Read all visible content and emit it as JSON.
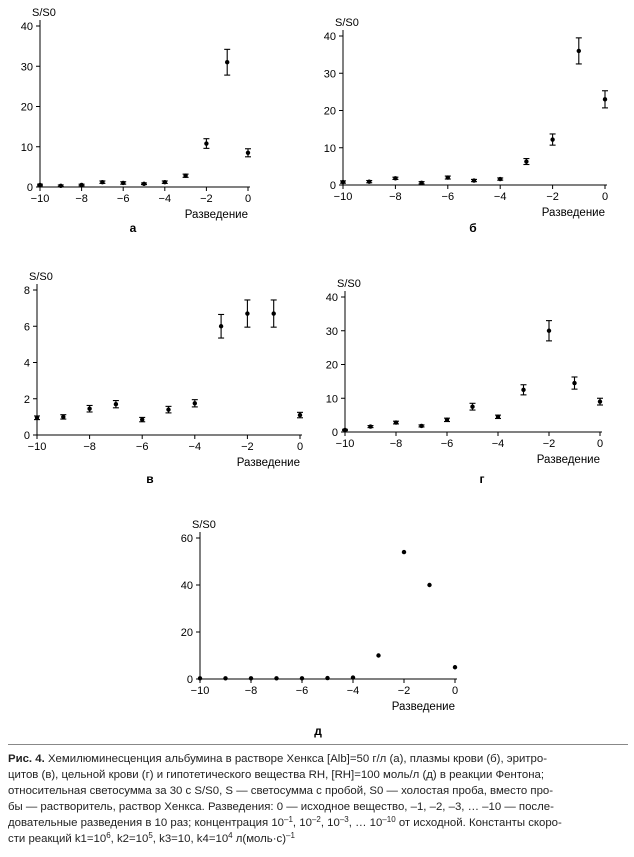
{
  "chart_data": [
    {
      "type": "scatter",
      "panel_label": "а",
      "ylabel": "S/S0",
      "xlabel": "Разведение",
      "xlim": [
        -10,
        0
      ],
      "ylim": [
        0,
        40
      ],
      "xticks": [
        -10,
        -8,
        -6,
        -4,
        -2,
        0
      ],
      "yticks": [
        0,
        10,
        20,
        30,
        40
      ],
      "x": [
        -10,
        -9,
        -8,
        -7,
        -6,
        -5,
        -4,
        -3,
        -2,
        -1,
        0
      ],
      "y": [
        0.5,
        0.3,
        0.5,
        1.2,
        1.0,
        0.8,
        1.2,
        2.8,
        10.8,
        31,
        8.5
      ],
      "err": [
        0.2,
        0.2,
        0.2,
        0.3,
        0.3,
        0.2,
        0.3,
        0.4,
        1.2,
        3.2,
        1.0
      ]
    },
    {
      "type": "scatter",
      "panel_label": "б",
      "ylabel": "S/S0",
      "xlabel": "Разведение",
      "xlim": [
        -10,
        0
      ],
      "ylim": [
        0,
        40
      ],
      "xticks": [
        -10,
        -8,
        -6,
        -4,
        -2,
        0
      ],
      "yticks": [
        0,
        10,
        20,
        30,
        40
      ],
      "x": [
        -10,
        -9,
        -8,
        -7,
        -6,
        -5,
        -4,
        -3,
        -2,
        -1,
        0
      ],
      "y": [
        0.8,
        0.9,
        1.8,
        0.6,
        2.0,
        1.2,
        1.6,
        6.3,
        12.2,
        36,
        23
      ],
      "err": [
        0.3,
        0.3,
        0.3,
        0.3,
        0.4,
        0.3,
        0.3,
        0.8,
        1.5,
        3.5,
        2.3
      ]
    },
    {
      "type": "scatter",
      "panel_label": "в",
      "ylabel": "S/S0",
      "xlabel": "Разведение",
      "xlim": [
        -10,
        0
      ],
      "ylim": [
        0,
        8
      ],
      "xticks": [
        -10,
        -8,
        -6,
        -4,
        -2,
        0
      ],
      "yticks": [
        0,
        2,
        4,
        6,
        8
      ],
      "x": [
        -10,
        -9,
        -8,
        -7,
        -6,
        -5,
        -4,
        -3,
        -2,
        -1,
        0
      ],
      "y": [
        0.95,
        1.0,
        1.45,
        1.7,
        0.85,
        1.4,
        1.75,
        6.0,
        6.7,
        6.7,
        1.1
      ],
      "err": [
        0.1,
        0.12,
        0.18,
        0.2,
        0.12,
        0.18,
        0.2,
        0.65,
        0.75,
        0.75,
        0.15
      ]
    },
    {
      "type": "scatter",
      "panel_label": "г",
      "ylabel": "S/S0",
      "xlabel": "Разведение",
      "xlim": [
        -10,
        0
      ],
      "ylim": [
        0,
        40
      ],
      "xticks": [
        -10,
        -8,
        -6,
        -4,
        -2,
        0
      ],
      "yticks": [
        0,
        10,
        20,
        30,
        40
      ],
      "x": [
        -10,
        -9,
        -8,
        -7,
        -6,
        -5,
        -4,
        -3,
        -2,
        -1,
        0
      ],
      "y": [
        0.6,
        1.6,
        2.8,
        1.8,
        3.6,
        7.5,
        4.5,
        12.5,
        30,
        14.5,
        9.0
      ],
      "err": [
        0.2,
        0.3,
        0.4,
        0.3,
        0.5,
        1.0,
        0.5,
        1.5,
        3.0,
        1.8,
        1.0
      ]
    },
    {
      "type": "scatter",
      "panel_label": "д",
      "ylabel": "S/S0",
      "xlabel": "Разведение",
      "xlim": [
        -10,
        0
      ],
      "ylim": [
        0,
        60
      ],
      "xticks": [
        -10,
        -8,
        -6,
        -4,
        -2,
        0
      ],
      "yticks": [
        0,
        20,
        40,
        60
      ],
      "x": [
        -10,
        -9,
        -8,
        -7,
        -6,
        -5,
        -4,
        -3,
        -2,
        -1,
        0
      ],
      "y": [
        0.3,
        0.3,
        0.3,
        0.3,
        0.3,
        0.4,
        0.6,
        10,
        54,
        40,
        5
      ]
    }
  ],
  "caption": {
    "fig_label": "Рис. 4.",
    "text_1": "Хемилюминесценция альбумина в растворе Хенкса [Alb]=50 г/л (а), плазмы крови (б), эритро-",
    "text_2": "цитов (в), цельной крови (г) и гипотетического вещества RH, [RH]=100 моль/л (д) в реакции Фентона;",
    "text_3": "относительная светосумма за 30 с S/S0, S — светосумма с пробой, S0 — холостая проба, вместо про-",
    "text_4": "бы — растворитель, раствор Хенкса. Разведения: 0 — исходное вещество, –1, –2, –3, … –10 — после-",
    "text_5": "довательные разведения в 10 раз; концентрация 10",
    "text_5b": "–1",
    "text_5c": ", 10",
    "text_5d": "–2",
    "text_5e": ", 10",
    "text_5f": "–3",
    "text_5g": ", … 10",
    "text_5h": "–10",
    "text_5i": " от исходной. Константы скоро-",
    "text_6": "сти реакций k1=10",
    "text_6b": "6",
    "text_6c": ", k2=10",
    "text_6d": "5",
    "text_6e": ", k3=10, k4=10",
    "text_6f": "4",
    "text_6g": " л(моль·с)",
    "text_6h": "–1"
  }
}
